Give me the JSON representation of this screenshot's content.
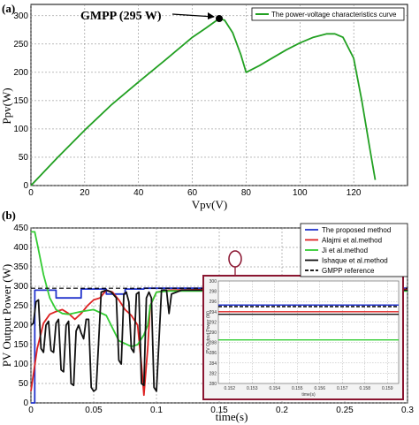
{
  "chart_data": [
    {
      "type": "line",
      "panel_label": "(a)",
      "xlabel": "Vpv(V)",
      "ylabel": "Ppv(W)",
      "xlim": [
        0,
        140
      ],
      "ylim": [
        0,
        320
      ],
      "xticks": [
        0,
        20,
        40,
        60,
        80,
        100,
        120
      ],
      "yticks": [
        0,
        50,
        100,
        150,
        200,
        250,
        300
      ],
      "grid": true,
      "legend_position": "top-right",
      "series": [
        {
          "name": "The power-voltage characteristics curve",
          "color": "#22a022",
          "x": [
            0,
            10,
            20,
            30,
            40,
            50,
            60,
            65,
            70,
            72,
            75,
            78,
            80,
            85,
            90,
            95,
            100,
            105,
            110,
            113,
            116,
            120,
            123,
            126,
            128
          ],
          "y": [
            0,
            50,
            98,
            143,
            183,
            222,
            262,
            278,
            295,
            292,
            270,
            232,
            200,
            212,
            226,
            240,
            252,
            262,
            268,
            268,
            262,
            225,
            150,
            65,
            10
          ]
        }
      ],
      "annotation": {
        "text": "GMPP (295 W)",
        "x": 70,
        "y": 295,
        "color": "#000000"
      }
    },
    {
      "type": "line",
      "panel_label": "(b)",
      "xlabel": "time(s)",
      "ylabel": "PV Output Power (W)",
      "xlim": [
        0,
        0.3
      ],
      "ylim": [
        0,
        450
      ],
      "xticks": [
        "0",
        "0.05",
        "0.1",
        "0.15",
        "0.2",
        "0.25",
        "0.3"
      ],
      "yticks": [
        0,
        50,
        100,
        150,
        200,
        250,
        300,
        350,
        400,
        450
      ],
      "grid": true,
      "legend_position": "top-right",
      "series": [
        {
          "name": "The proposed method",
          "color": "#2233cc",
          "x": [
            0,
            0.003,
            0.0031,
            0.02,
            0.0201,
            0.04,
            0.0401,
            0.06,
            0.0601,
            0.075,
            0.0751,
            0.09,
            0.0901,
            0.1,
            0.3
          ],
          "y": [
            0,
            0,
            290,
            290,
            270,
            270,
            293,
            293,
            280,
            280,
            293,
            293,
            295,
            295,
            295
          ]
        },
        {
          "name": "Alajmi et al.method",
          "color": "#dd2222",
          "x": [
            0,
            0.005,
            0.01,
            0.015,
            0.02,
            0.025,
            0.03,
            0.035,
            0.04,
            0.045,
            0.05,
            0.055,
            0.06,
            0.065,
            0.07,
            0.075,
            0.08,
            0.085,
            0.088,
            0.09,
            0.093,
            0.095,
            0.1,
            0.11,
            0.15,
            0.3
          ],
          "y": [
            30,
            140,
            205,
            228,
            235,
            240,
            230,
            215,
            230,
            250,
            265,
            270,
            290,
            285,
            265,
            240,
            225,
            200,
            100,
            20,
            140,
            250,
            285,
            290,
            292,
            292
          ]
        },
        {
          "name": "Ji et al.method",
          "color": "#33cc33",
          "x": [
            0,
            0.003,
            0.005,
            0.01,
            0.015,
            0.02,
            0.025,
            0.03,
            0.04,
            0.05,
            0.06,
            0.07,
            0.08,
            0.085,
            0.09,
            0.093,
            0.095,
            0.1,
            0.11,
            0.15,
            0.3
          ],
          "y": [
            440,
            440,
            410,
            330,
            270,
            240,
            230,
            228,
            235,
            240,
            225,
            160,
            145,
            150,
            175,
            200,
            250,
            285,
            288,
            288,
            288
          ]
        },
        {
          "name": "Ishaque et al.method",
          "color": "#111111",
          "x": [
            0,
            0.002,
            0.004,
            0.006,
            0.008,
            0.01,
            0.012,
            0.014,
            0.016,
            0.018,
            0.02,
            0.022,
            0.024,
            0.026,
            0.028,
            0.03,
            0.032,
            0.034,
            0.036,
            0.038,
            0.04,
            0.042,
            0.044,
            0.046,
            0.048,
            0.05,
            0.052,
            0.056,
            0.06,
            0.064,
            0.068,
            0.07,
            0.072,
            0.074,
            0.076,
            0.078,
            0.08,
            0.082,
            0.084,
            0.086,
            0.088,
            0.09,
            0.092,
            0.094,
            0.096,
            0.098,
            0.1,
            0.104,
            0.108,
            0.11,
            0.112,
            0.12,
            0.3
          ],
          "y": [
            200,
            205,
            260,
            265,
            140,
            130,
            200,
            210,
            135,
            130,
            205,
            215,
            85,
            80,
            200,
            210,
            50,
            45,
            185,
            200,
            180,
            165,
            215,
            215,
            40,
            30,
            35,
            285,
            290,
            285,
            270,
            110,
            100,
            280,
            285,
            260,
            140,
            130,
            280,
            285,
            50,
            45,
            270,
            285,
            270,
            40,
            30,
            290,
            290,
            230,
            280,
            290,
            290
          ]
        },
        {
          "name": "GMPP reference",
          "color": "#000000",
          "dashed": true,
          "x": [
            0,
            0.3
          ],
          "y": [
            295,
            295
          ]
        }
      ],
      "inset": {
        "xticks": [
          "0.152",
          "0.153",
          "0.154",
          "0.155",
          "0.156",
          "0.157",
          "0.158",
          "0.159"
        ],
        "yticks": [
          "280",
          "282",
          "284",
          "286",
          "288",
          "290",
          "292",
          "294",
          "296",
          "298",
          "300"
        ],
        "xlabel": "time(s)",
        "ylabel": "PV Output Power (W)"
      }
    }
  ]
}
